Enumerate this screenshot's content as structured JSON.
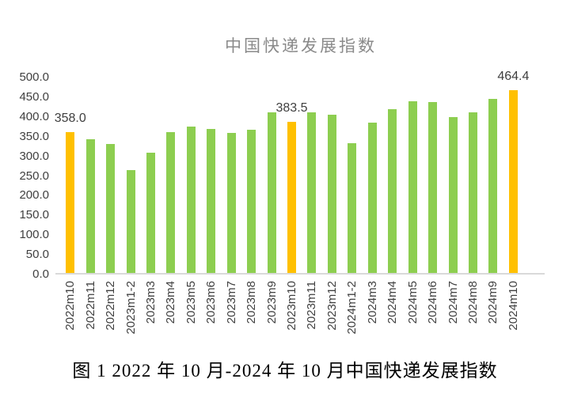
{
  "caption": "图 1 2022 年 10 月-2024 年 10 月中国快递发展指数",
  "colors": {
    "bar_green": "#8dce50",
    "bar_orange": "#ffc000",
    "axis_line": "#d9d9d9",
    "axis_text": "#404040",
    "title_text": "#8a8a8a",
    "data_label_text": "#3f3f3f"
  },
  "chart_data": {
    "type": "bar",
    "title": "中国快递发展指数",
    "xlabel": "",
    "ylabel": "",
    "ylim": [
      0,
      500
    ],
    "ytick_step": 50,
    "yticks": [
      "500.0",
      "450.0",
      "400.0",
      "350.0",
      "300.0",
      "250.0",
      "200.0",
      "150.0",
      "100.0",
      "50.0",
      "0.0"
    ],
    "grid": "none",
    "legend": "none",
    "categories": [
      "2022m10",
      "2022m11",
      "2022m12",
      "2023m1-2",
      "2023m3",
      "2023m4",
      "2023m5",
      "2023m6",
      "2023m7",
      "2023m8",
      "2023m9",
      "2023m10",
      "2023m11",
      "2023m12",
      "2024m1-2",
      "2024m3",
      "2024m4",
      "2024m5",
      "2024m6",
      "2024m7",
      "2024m8",
      "2024m9",
      "2024m10"
    ],
    "values": [
      358.0,
      340.0,
      328.0,
      261.0,
      306.0,
      357.0,
      372.0,
      366.0,
      355.0,
      363.0,
      407.0,
      383.5,
      407.0,
      401.0,
      329.0,
      381.0,
      415.0,
      436.0,
      434.0,
      395.0,
      407.0,
      442.0,
      464.4
    ],
    "data_labels": [
      "358.0",
      null,
      null,
      null,
      null,
      null,
      null,
      null,
      null,
      null,
      null,
      "383.5",
      null,
      null,
      null,
      null,
      null,
      null,
      null,
      null,
      null,
      null,
      "464.4"
    ],
    "highlight_indices": [
      0,
      11,
      22
    ]
  }
}
